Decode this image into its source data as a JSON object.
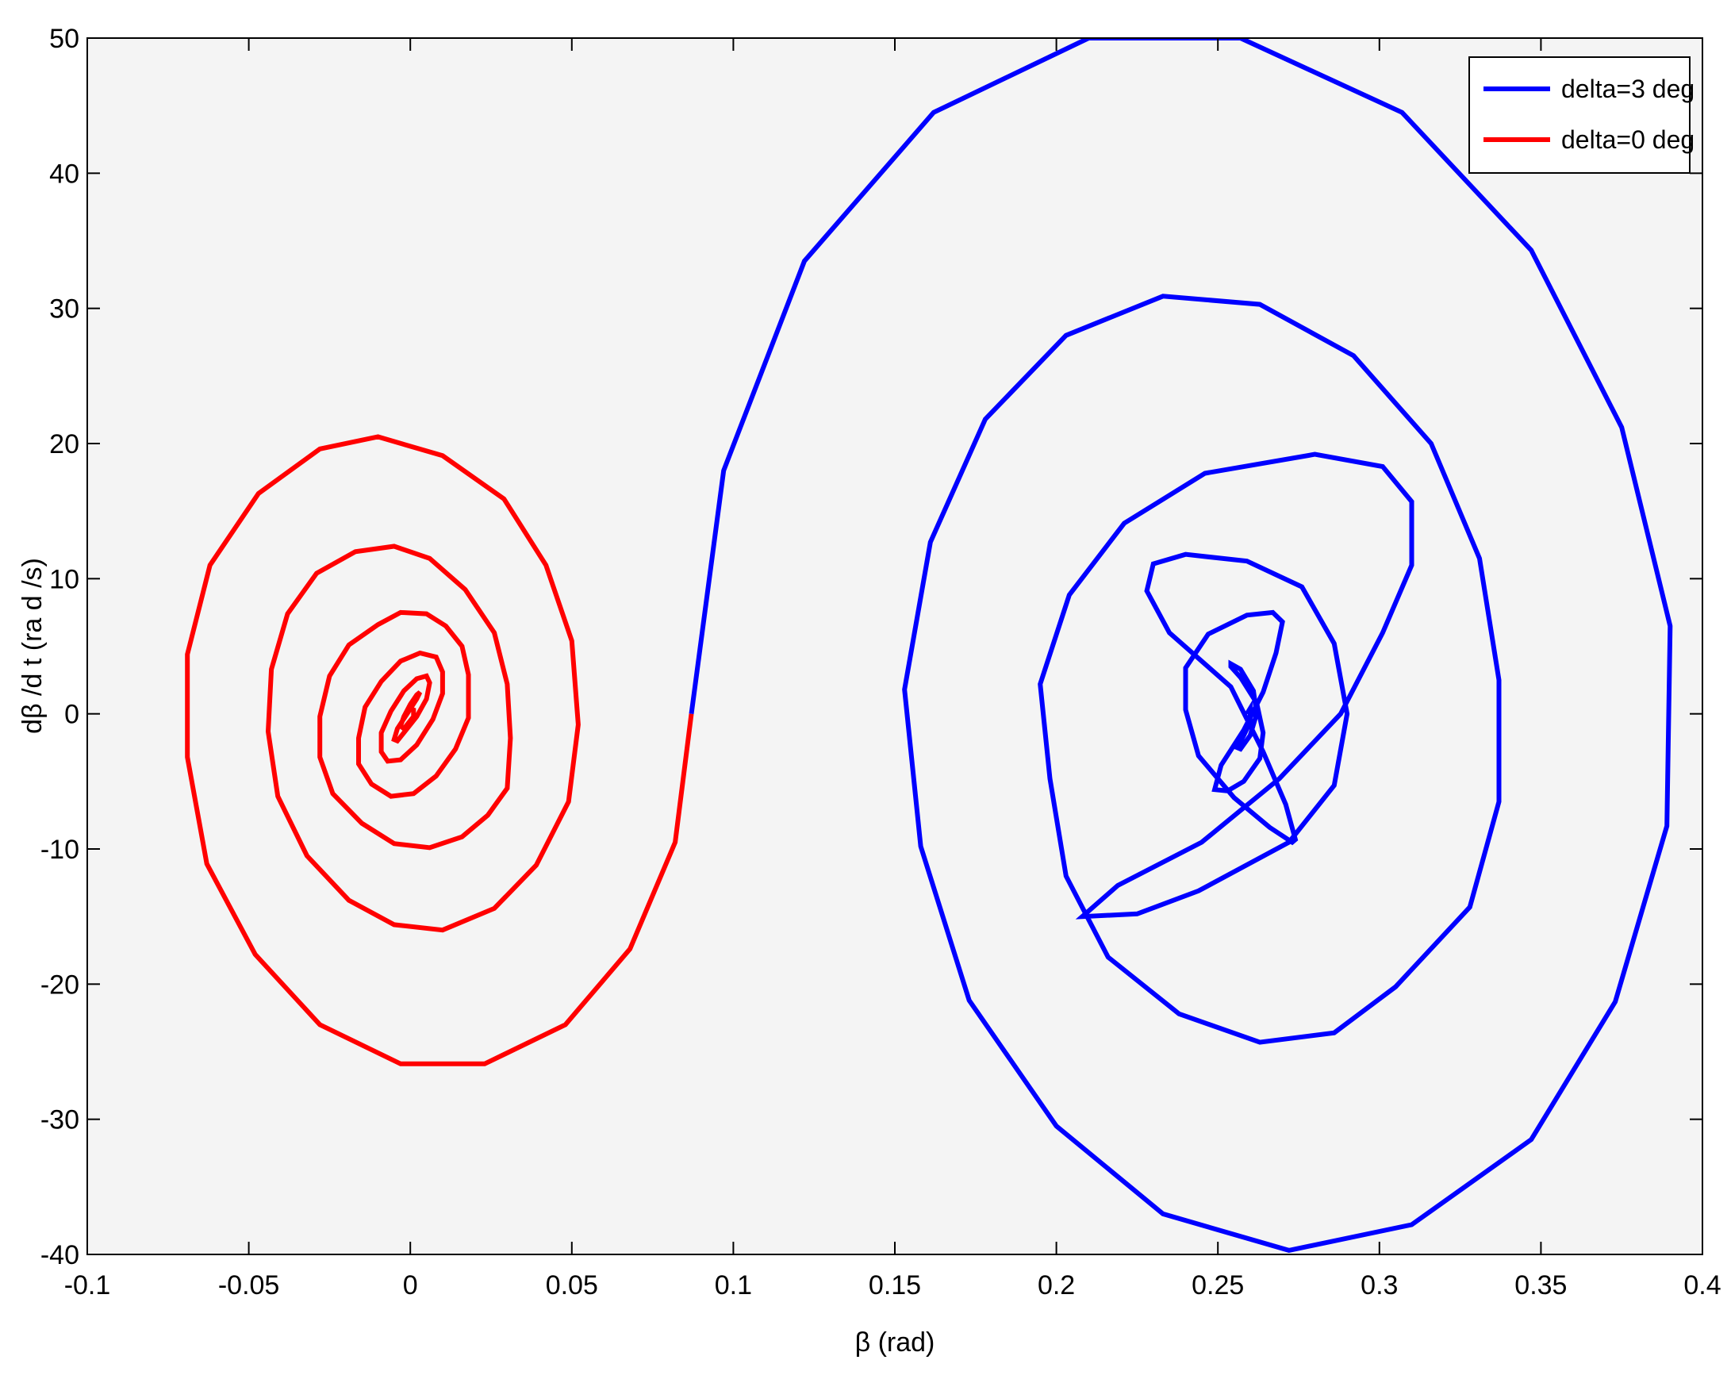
{
  "chart_data": {
    "type": "line",
    "xlabel": "β (rad)",
    "ylabel": "dβ /d t  (ra d /s)",
    "xlim": [
      -0.1,
      0.4
    ],
    "ylim": [
      -40,
      50
    ],
    "xticks": [
      -0.1,
      -0.05,
      0,
      0.05,
      0.1,
      0.15,
      0.2,
      0.25,
      0.3,
      0.35,
      0.4
    ],
    "xtick_labels": [
      "-0.1",
      "-0.05",
      "0",
      "0.05",
      "0.1",
      "0.15",
      "0.2",
      "0.25",
      "0.3",
      "0.35",
      "0.4"
    ],
    "yticks": [
      -40,
      -30,
      -20,
      -10,
      0,
      10,
      20,
      30,
      40,
      50
    ],
    "ytick_labels": [
      "-40",
      "-30",
      "-20",
      "-10",
      "0",
      "10",
      "20",
      "30",
      "40",
      "50"
    ],
    "grid": false,
    "legend_position": "top-right",
    "background": "#f4f4f4",
    "series": [
      {
        "name": "delta=3 deg",
        "color": "#0000ff",
        "x": [
          0.087,
          0.097,
          0.122,
          0.162,
          0.21,
          0.257,
          0.307,
          0.347,
          0.375,
          0.39,
          0.389,
          0.373,
          0.347,
          0.31,
          0.272,
          0.233,
          0.2,
          0.173,
          0.158,
          0.153,
          0.161,
          0.178,
          0.203,
          0.233,
          0.263,
          0.292,
          0.316,
          0.331,
          0.337,
          0.337,
          0.328,
          0.305,
          0.286,
          0.263,
          0.238,
          0.216,
          0.203,
          0.198,
          0.195,
          0.204,
          0.221,
          0.246,
          0.28,
          0.301,
          0.31,
          0.31,
          0.301,
          0.288,
          0.269,
          0.245,
          0.219,
          0.208,
          0.225,
          0.244,
          0.272,
          0.286,
          0.29,
          0.286,
          0.276,
          0.259,
          0.24,
          0.23,
          0.228,
          0.235,
          0.254,
          0.264,
          0.271,
          0.274,
          0.273,
          0.266,
          0.255,
          0.244,
          0.24,
          0.24,
          0.247,
          0.259,
          0.267,
          0.27,
          0.268,
          0.264,
          0.258,
          0.251,
          0.249,
          0.253,
          0.258,
          0.263,
          0.264,
          0.262,
          0.257,
          0.254,
          0.254,
          0.257,
          0.261,
          0.262,
          0.26,
          0.257,
          0.256,
          0.258,
          0.26,
          0.26,
          0.259
        ],
        "y": [
          0,
          18,
          33.5,
          44.5,
          50,
          50,
          44.5,
          34.3,
          21.2,
          6.5,
          -8.3,
          -21.3,
          -31.5,
          -37.8,
          -39.7,
          -37,
          -30.5,
          -21.2,
          -9.8,
          1.8,
          12.7,
          21.8,
          28,
          30.9,
          30.3,
          26.5,
          20,
          11.5,
          2.5,
          -6.5,
          -14.3,
          -20.2,
          -23.6,
          -24.3,
          -22.2,
          -18,
          -12,
          -4.8,
          2.2,
          8.8,
          14.1,
          17.8,
          19.2,
          18.3,
          15.7,
          11,
          6,
          0,
          -4.8,
          -9.5,
          -12.7,
          -15,
          -14.8,
          -13.1,
          -9.5,
          -5.3,
          0,
          5.2,
          9.4,
          11.3,
          11.8,
          11.1,
          9.1,
          6,
          2,
          -2.8,
          -6.7,
          -9.3,
          -9.5,
          -8.4,
          -6.2,
          -3.1,
          0.3,
          3.4,
          5.9,
          7.3,
          7.5,
          6.8,
          4.5,
          1.6,
          -1.2,
          -3.8,
          -5.6,
          -5.7,
          -5,
          -3.3,
          -1.4,
          0.8,
          2.7,
          3.5,
          3.7,
          3.3,
          1.7,
          0,
          -1.6,
          -2.6,
          -2.5,
          -1.6,
          -0.6,
          0.4,
          0
        ]
      },
      {
        "name": "delta=0 deg",
        "color": "#ff0000",
        "x": [
          0.087,
          0.082,
          0.068,
          0.048,
          0.023,
          -0.003,
          -0.028,
          -0.048,
          -0.063,
          -0.069,
          -0.069,
          -0.062,
          -0.047,
          -0.028,
          -0.01,
          0.01,
          0.029,
          0.042,
          0.05,
          0.052,
          0.049,
          0.039,
          0.026,
          0.01,
          -0.005,
          -0.019,
          -0.032,
          -0.041,
          -0.044,
          -0.043,
          -0.038,
          -0.029,
          -0.017,
          -0.005,
          0.006,
          0.017,
          0.026,
          0.03,
          0.031,
          0.03,
          0.024,
          0.016,
          0.006,
          -0.005,
          -0.015,
          -0.024,
          -0.028,
          -0.028,
          -0.025,
          -0.019,
          -0.01,
          -0.003,
          0.005,
          0.011,
          0.016,
          0.018,
          0.018,
          0.014,
          0.008,
          0.001,
          -0.006,
          -0.012,
          -0.016,
          -0.016,
          -0.014,
          -0.009,
          -0.003,
          0.003,
          0.008,
          0.01,
          0.01,
          0.007,
          0.002,
          -0.003,
          -0.007,
          -0.009,
          -0.009,
          -0.006,
          -0.002,
          0.002,
          0.005,
          0.006,
          0.005,
          0.002,
          -0.002,
          -0.004,
          -0.005,
          -0.004,
          -0.001,
          0.002,
          0.003,
          0.002,
          0.0,
          -0.002,
          -0.003,
          -0.002,
          -0.001,
          0.001,
          0.001,
          0.0
        ],
        "y": [
          0,
          -9.5,
          -17.4,
          -23,
          -25.9,
          -25.9,
          -23,
          -17.8,
          -11.1,
          -3.2,
          4.4,
          11,
          16.3,
          19.6,
          20.5,
          19.1,
          15.9,
          11,
          5.4,
          -0.8,
          -6.5,
          -11.2,
          -14.4,
          -16,
          -15.6,
          -13.8,
          -10.5,
          -6.1,
          -1.3,
          3.3,
          7.4,
          10.4,
          12,
          12.4,
          11.5,
          9.2,
          6,
          2.2,
          -1.8,
          -5.5,
          -7.5,
          -9.1,
          -9.9,
          -9.6,
          -8.1,
          -5.9,
          -3.2,
          -0.2,
          2.8,
          5.1,
          6.6,
          7.5,
          7.4,
          6.5,
          5,
          2.9,
          -0.3,
          -2.6,
          -4.6,
          -5.9,
          -6.1,
          -5.2,
          -3.7,
          -1.8,
          0.5,
          2.4,
          3.9,
          4.5,
          4.2,
          3.1,
          1.5,
          -0.4,
          -2.3,
          -3.4,
          -3.5,
          -2.8,
          -1.4,
          0.2,
          1.7,
          2.6,
          2.8,
          2.3,
          1.1,
          -0.2,
          -1.4,
          -2,
          -1.9,
          -1.1,
          0,
          1.1,
          1.6,
          1.4,
          0.7,
          -0.2,
          -0.9,
          -1.1,
          -0.8,
          -0.2,
          0.3,
          0.4
        ]
      }
    ]
  }
}
